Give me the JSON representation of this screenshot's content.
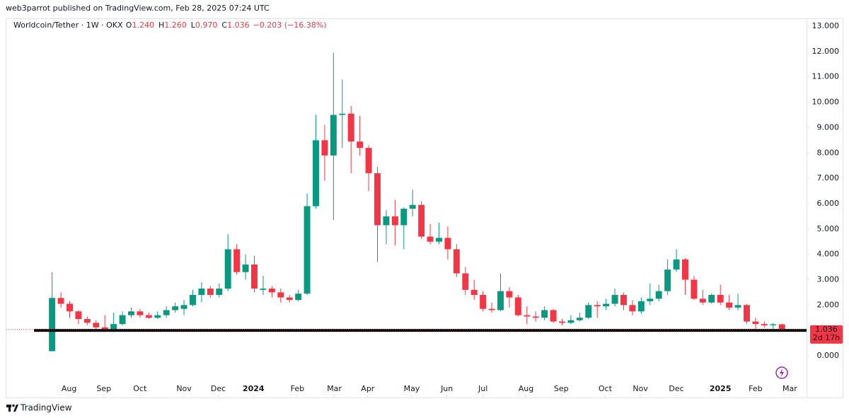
{
  "header": "web3parrot published on TradingView.com, Feb 28, 2025 07:24 UTC",
  "footer": "TradingView",
  "chart_data": {
    "type": "candlestick",
    "legend": {
      "symbol": "Worldcoin/Tether · 1W · OKX",
      "fields": [
        {
          "key": "O",
          "value": "1.240"
        },
        {
          "key": "H",
          "value": "1.260"
        },
        {
          "key": "L",
          "value": "0.970"
        },
        {
          "key": "C",
          "value": "1.036"
        }
      ],
      "change": "−0.203 (−16.38%)"
    },
    "up_color": "#089981",
    "down_color": "#f23645",
    "series": {
      "open": [
        0.18,
        2.28,
        2.05,
        1.75,
        1.45,
        1.3,
        1.12,
        1.05,
        1.25,
        1.6,
        1.75,
        1.6,
        1.5,
        1.6,
        1.8,
        1.85,
        2.0,
        2.4,
        2.65,
        2.4,
        2.65,
        4.2,
        3.3,
        3.6,
        2.6,
        2.65,
        2.5,
        2.3,
        2.2,
        2.45,
        5.9,
        8.5,
        7.9,
        9.5,
        9.55,
        8.45,
        8.2,
        7.2,
        5.15,
        5.5,
        5.15,
        5.8,
        5.95,
        4.7,
        4.5,
        4.65,
        4.2,
        3.25,
        2.6,
        2.4,
        1.85,
        1.8,
        2.55,
        2.3,
        1.6,
        1.55,
        1.5,
        1.8,
        1.35,
        1.3,
        1.4,
        1.5,
        2.0,
        1.95,
        2.05,
        2.4,
        2.0,
        1.75,
        2.15,
        2.25,
        2.55,
        3.4,
        3.8,
        3.0,
        2.25,
        2.1,
        2.4,
        2.1,
        1.9,
        2.0,
        1.35,
        1.25,
        1.2,
        1.24
      ],
      "high": [
        3.3,
        2.5,
        2.15,
        1.8,
        1.55,
        1.4,
        1.6,
        1.7,
        1.75,
        1.9,
        1.85,
        1.7,
        1.75,
        1.95,
        2.1,
        2.2,
        2.6,
        2.9,
        2.75,
        2.85,
        4.8,
        4.4,
        4.0,
        3.95,
        3.15,
        2.75,
        2.65,
        2.4,
        2.6,
        6.4,
        9.5,
        9.1,
        11.95,
        10.9,
        9.85,
        9.45,
        8.3,
        7.45,
        5.75,
        6.15,
        5.85,
        6.55,
        6.1,
        5.2,
        5.25,
        5.1,
        4.4,
        3.5,
        3.0,
        2.55,
        2.1,
        3.25,
        2.7,
        2.4,
        1.95,
        1.75,
        1.95,
        1.85,
        1.45,
        1.6,
        1.7,
        2.1,
        2.15,
        2.25,
        2.65,
        2.5,
        2.2,
        2.3,
        2.85,
        2.8,
        3.8,
        4.2,
        3.85,
        3.15,
        2.6,
        2.45,
        2.8,
        2.4,
        2.45,
        2.05,
        1.5,
        1.35,
        1.3,
        1.26
      ],
      "low": [
        0.18,
        1.9,
        1.5,
        1.25,
        1.2,
        1.0,
        0.95,
        1.0,
        1.2,
        1.5,
        1.5,
        1.45,
        1.45,
        1.5,
        1.7,
        1.6,
        1.95,
        2.1,
        2.3,
        2.3,
        2.55,
        3.2,
        3.0,
        2.5,
        2.4,
        2.3,
        2.1,
        2.1,
        2.15,
        2.4,
        5.8,
        6.9,
        5.35,
        8.2,
        7.2,
        7.9,
        6.5,
        3.7,
        4.4,
        4.35,
        4.2,
        5.5,
        4.6,
        4.4,
        4.4,
        3.8,
        3.1,
        2.4,
        2.2,
        1.75,
        1.7,
        1.75,
        1.9,
        1.55,
        1.25,
        1.35,
        1.4,
        1.3,
        1.2,
        1.25,
        1.35,
        1.45,
        1.5,
        1.8,
        1.95,
        1.8,
        1.6,
        1.65,
        2.0,
        2.15,
        2.4,
        3.3,
        2.4,
        2.2,
        2.0,
        2.05,
        2.0,
        1.8,
        1.8,
        1.25,
        1.0,
        1.1,
        1.05,
        0.97
      ],
      "close": [
        2.28,
        2.05,
        1.75,
        1.45,
        1.3,
        1.12,
        1.05,
        1.25,
        1.6,
        1.75,
        1.6,
        1.5,
        1.6,
        1.8,
        1.95,
        2.0,
        2.4,
        2.65,
        2.4,
        2.65,
        4.2,
        3.3,
        3.6,
        2.65,
        2.65,
        2.5,
        2.3,
        2.2,
        2.45,
        5.9,
        8.5,
        7.9,
        9.5,
        9.55,
        8.45,
        8.2,
        7.2,
        5.15,
        5.5,
        5.15,
        5.8,
        5.95,
        4.7,
        4.5,
        4.65,
        4.2,
        3.25,
        2.6,
        2.4,
        1.85,
        1.8,
        2.55,
        2.3,
        1.6,
        1.55,
        1.5,
        1.8,
        1.35,
        1.3,
        1.4,
        1.5,
        2.0,
        1.95,
        2.05,
        2.4,
        2.0,
        1.75,
        2.15,
        2.25,
        2.55,
        3.4,
        3.8,
        3.0,
        2.25,
        2.1,
        2.4,
        2.1,
        1.9,
        2.0,
        1.35,
        1.25,
        1.2,
        1.24,
        1.036
      ]
    },
    "xlim": [
      -5.2,
      85.8
    ],
    "xticks": [
      {
        "value": 1.93,
        "label": "Aug"
      },
      {
        "value": 5.88,
        "label": "Sep"
      },
      {
        "value": 9.99,
        "label": "Oct"
      },
      {
        "value": 15.0,
        "label": "Nov"
      },
      {
        "value": 18.9,
        "label": "Dec"
      },
      {
        "value": 22.9,
        "label": "2024"
      },
      {
        "value": 27.9,
        "label": "Feb"
      },
      {
        "value": 32.1,
        "label": "Mar"
      },
      {
        "value": 35.9,
        "label": "Apr"
      },
      {
        "value": 40.9,
        "label": "May"
      },
      {
        "value": 44.9,
        "label": "Jun"
      },
      {
        "value": 49.0,
        "label": "Jul"
      },
      {
        "value": 53.9,
        "label": "Aug"
      },
      {
        "value": 57.9,
        "label": "Sep"
      },
      {
        "value": 62.9,
        "label": "Oct"
      },
      {
        "value": 66.9,
        "label": "Nov"
      },
      {
        "value": 71.0,
        "label": "Dec"
      },
      {
        "value": 76.0,
        "label": "2025"
      },
      {
        "value": 80.0,
        "label": "Feb"
      },
      {
        "value": 83.9,
        "label": "Mar"
      }
    ],
    "ylim": [
      -1.646,
      13.28
    ],
    "yticks": [
      {
        "value": 0,
        "label": "0.000"
      },
      {
        "value": 1,
        "label": "1.000"
      },
      {
        "value": 2,
        "label": "2.000"
      },
      {
        "value": 3,
        "label": "3.000"
      },
      {
        "value": 4,
        "label": "4.000"
      },
      {
        "value": 5,
        "label": "5.000"
      },
      {
        "value": 6,
        "label": "6.000"
      },
      {
        "value": 7,
        "label": "7.000"
      },
      {
        "value": 8,
        "label": "8.000"
      },
      {
        "value": 9,
        "label": "9.000"
      },
      {
        "value": 10,
        "label": "10.000"
      },
      {
        "value": 11,
        "label": "11.000"
      },
      {
        "value": 12,
        "label": "12.000"
      },
      {
        "value": 13,
        "label": "13.000"
      }
    ],
    "drawn_level": 1.0,
    "last_price": {
      "value": 1.036,
      "label": "1.036",
      "countdown": "2d 17h"
    }
  }
}
